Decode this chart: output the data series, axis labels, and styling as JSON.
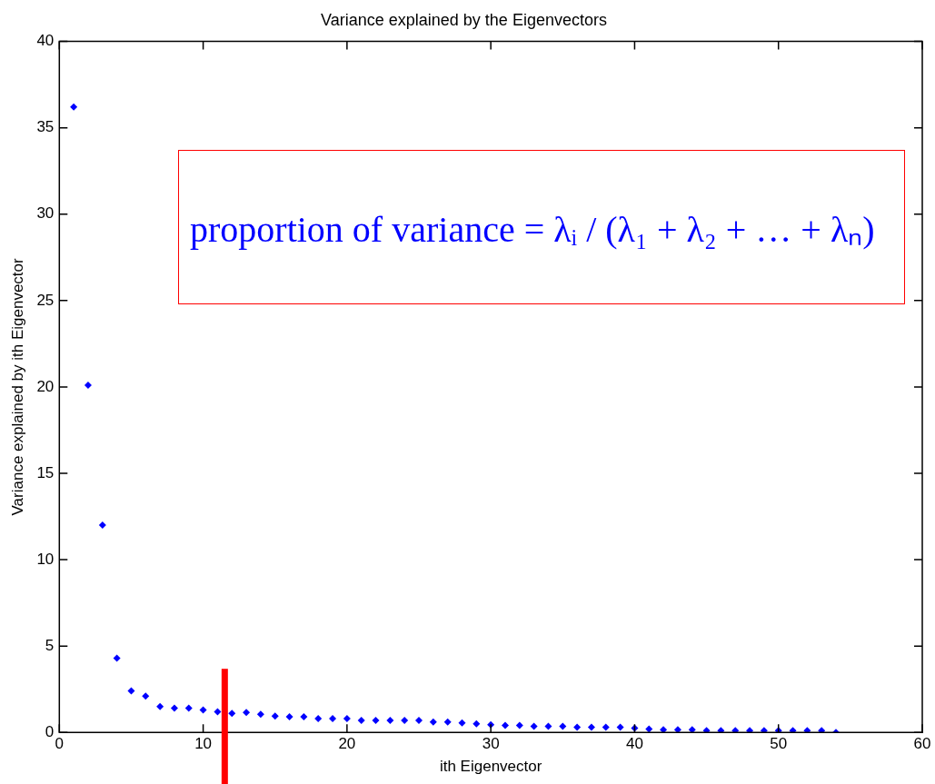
{
  "chart_data": {
    "type": "scatter",
    "title": "Variance explained by the Eigenvectors",
    "xlabel": "ith Eigenvector",
    "ylabel": "Variance explained by ith Eigenvector",
    "x": [
      1,
      2,
      3,
      4,
      5,
      6,
      7,
      8,
      9,
      10,
      11,
      12,
      13,
      14,
      15,
      16,
      17,
      18,
      19,
      20,
      21,
      22,
      23,
      24,
      25,
      26,
      27,
      28,
      29,
      30,
      31,
      32,
      33,
      34,
      35,
      36,
      37,
      38,
      39,
      40,
      41,
      42,
      43,
      44,
      45,
      46,
      47,
      48,
      49,
      50,
      51,
      52,
      53,
      54
    ],
    "series": [
      {
        "color": "#0000ff",
        "values": [
          36.2,
          20.1,
          12.0,
          4.3,
          2.4,
          2.1,
          1.5,
          1.4,
          1.4,
          1.3,
          1.2,
          1.1,
          1.15,
          1.05,
          0.95,
          0.9,
          0.9,
          0.8,
          0.8,
          0.8,
          0.7,
          0.7,
          0.7,
          0.7,
          0.7,
          0.6,
          0.6,
          0.55,
          0.5,
          0.45,
          0.4,
          0.4,
          0.35,
          0.35,
          0.35,
          0.3,
          0.3,
          0.3,
          0.3,
          0.25,
          0.2,
          0.15,
          0.15,
          0.15,
          0.1,
          0.1,
          0.1,
          0.1,
          0.1,
          0.1,
          0.1,
          0.1,
          0.1,
          0.0
        ]
      }
    ],
    "xlim": [
      0,
      60
    ],
    "xticks": [
      0,
      10,
      20,
      30,
      40,
      50,
      60
    ],
    "ylim": [
      0,
      40
    ],
    "yticks": [
      0,
      5,
      10,
      15,
      20,
      25,
      30,
      35,
      40
    ],
    "grid": false,
    "legend": false,
    "marker": "diamond",
    "ref_lines": [
      {
        "axis": "x",
        "value": 11.5,
        "color": "#ff0000"
      }
    ],
    "annotations": [
      "proportion of variance = λᵢ / (λ₁ + λ₂ + … + λₙ)"
    ]
  }
}
